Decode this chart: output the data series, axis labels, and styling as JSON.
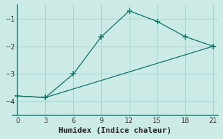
{
  "line1_x": [
    0,
    3,
    6,
    9,
    12,
    15,
    18,
    21
  ],
  "line1_y": [
    -3.8,
    -3.85,
    -3.0,
    -1.65,
    -0.72,
    -1.1,
    -1.65,
    -2.0
  ],
  "line2_x": [
    0,
    3,
    21
  ],
  "line2_y": [
    -3.8,
    -3.85,
    -2.0
  ],
  "color": "#1a7a6e",
  "bg_color": "#cceae6",
  "xlabel": "Humidex (Indice chaleur)",
  "ylim": [
    -4.5,
    -0.5
  ],
  "xlim": [
    -0.5,
    21.5
  ],
  "xticks": [
    0,
    3,
    6,
    9,
    12,
    15,
    18,
    21
  ],
  "yticks": [
    -4,
    -3,
    -2,
    -1
  ],
  "grid_color": "#aad4cf",
  "marker": "+",
  "marker_size": 6,
  "line_width": 1.0,
  "xlabel_fontsize": 8
}
